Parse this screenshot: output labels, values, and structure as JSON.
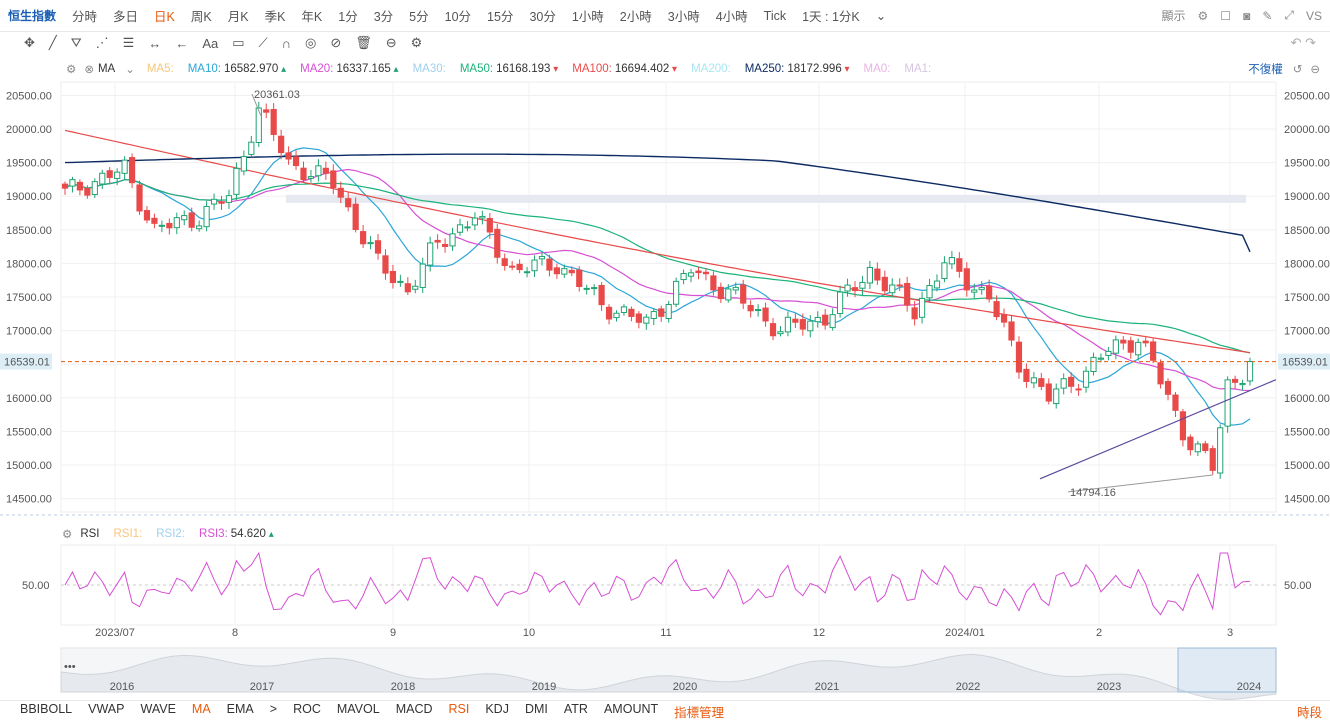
{
  "topbar": {
    "symbol": "恒生指數",
    "timeframes": [
      "分時",
      "多日",
      "日K",
      "周K",
      "月K",
      "季K",
      "年K",
      "1分",
      "3分",
      "5分",
      "10分",
      "15分",
      "30分",
      "1小時",
      "2小時",
      "3小時",
      "4小時",
      "Tick",
      "1天 : 1分K"
    ],
    "active_timeframe": "日K",
    "display_label": "顯示",
    "vs_label": "VS"
  },
  "toolbar": {
    "icons": [
      "crosshair-icon",
      "line-icon",
      "pattern-icon",
      "fib-icon",
      "channel-icon",
      "measure-icon",
      "arrow-icon",
      "text-icon",
      "note-icon",
      "ruler-icon",
      "magnet-icon",
      "lock-icon",
      "hide-icon",
      "trash-icon",
      "link-icon",
      "settings-icon"
    ],
    "text_tool_label": "Aa"
  },
  "ma_legend": {
    "name": "MA",
    "adjust_label": "不復權",
    "items": [
      {
        "label": "MA5:",
        "value": "",
        "color": "#f8c67a"
      },
      {
        "label": "MA10:",
        "value": "16582.970",
        "arrow": "up",
        "color": "#2aa6d8"
      },
      {
        "label": "MA20:",
        "value": "16337.165",
        "arrow": "up",
        "color": "#d64fd4"
      },
      {
        "label": "MA30:",
        "value": "",
        "color": "#9fd0ee"
      },
      {
        "label": "MA50:",
        "value": "16168.193",
        "arrow": "down",
        "color": "#1bb37a"
      },
      {
        "label": "MA100:",
        "value": "16694.402",
        "arrow": "down",
        "color": "#e84a4a"
      },
      {
        "label": "MA200:",
        "value": "",
        "color": "#a9e5f0"
      },
      {
        "label": "MA250:",
        "value": "18172.996",
        "arrow": "down",
        "color": "#0d2b63"
      },
      {
        "label": "MA0:",
        "value": "",
        "color": "#e9b3e6"
      },
      {
        "label": "MA1:",
        "value": "",
        "color": "#d7c4e2"
      }
    ]
  },
  "rsi_legend": {
    "name": "RSI",
    "items": [
      {
        "label": "RSI1:",
        "value": "",
        "color": "#f8c67a"
      },
      {
        "label": "RSI2:",
        "value": "",
        "color": "#9fd0ee"
      },
      {
        "label": "RSI3:",
        "value": "54.620",
        "arrow": "up",
        "color": "#d64fd4"
      }
    ]
  },
  "colors": {
    "up": "#1fa371",
    "down": "#e84a4a",
    "grid": "#f0f0f0",
    "current_price": "#e8590c",
    "support": "#5b4a9e"
  },
  "chart_data": {
    "type": "candlestick",
    "price_axis_ticks": [
      "20500.00",
      "20000.00",
      "19500.00",
      "19000.00",
      "18500.00",
      "18000.00",
      "17500.00",
      "17000.00",
      "16500.00",
      "16000.00",
      "15500.00",
      "15000.00",
      "14500.00"
    ],
    "ylim": [
      14300,
      20700
    ],
    "current_price": "16539.01",
    "annotations": [
      {
        "text": "20361.03",
        "type": "high"
      },
      {
        "text": "14794.16",
        "type": "low"
      }
    ],
    "time_axis_labels": [
      "2023/07",
      "8",
      "9",
      "10",
      "11",
      "12",
      "2024/01",
      "2",
      "3"
    ],
    "rsi_ticks": [
      "50.00"
    ],
    "navigator_labels": [
      "2016",
      "2017",
      "2018",
      "2019",
      "2020",
      "2021",
      "2022",
      "2023",
      "2024"
    ],
    "resistance_band": {
      "from": 18900,
      "to": 19020
    },
    "ma10_last": 16582.97,
    "ma20_last": 16337.165,
    "ma50_last": 16168.193,
    "ma100_last": 16694.402,
    "ma250_last": 18172.996,
    "rsi3_last": 54.62
  },
  "bottombar": {
    "items": [
      "BBIBOLL",
      "VWAP",
      "WAVE",
      "MA",
      "EMA",
      ">",
      "ROC",
      "MAVOL",
      "MACD",
      "RSI",
      "KDJ",
      "DMI",
      "ATR",
      "AMOUNT",
      "指標管理"
    ],
    "active": [
      "MA",
      "RSI"
    ],
    "right_label": "時段"
  }
}
